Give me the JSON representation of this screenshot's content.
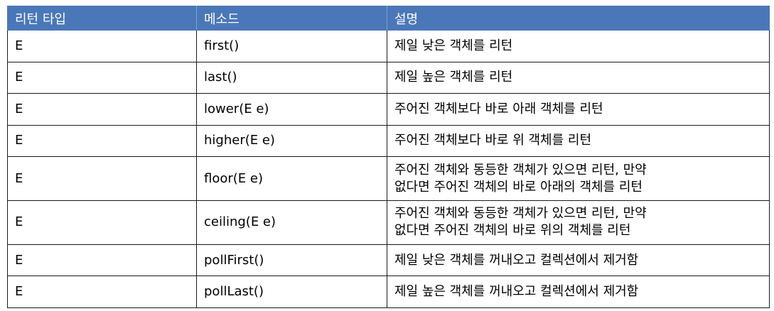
{
  "header": {
    "return_type": "리턴 타입",
    "method": "메소드",
    "description": "설명"
  },
  "rows": [
    {
      "return_type": "E",
      "method": "first()",
      "description": [
        "제일 낮은 객체를 리턴"
      ]
    },
    {
      "return_type": "E",
      "method": "last()",
      "description": [
        "제일 높은 객체를 리턴"
      ]
    },
    {
      "return_type": "E",
      "method": "lower(E e)",
      "description": [
        "주어진 객체보다 바로 아래 객체를 리턴"
      ]
    },
    {
      "return_type": "E",
      "method": "higher(E e)",
      "description": [
        "주어진 객체보다 바로 위 객체를 리턴"
      ]
    },
    {
      "return_type": "E",
      "method": "floor(E e)",
      "description": [
        "주어진 객체와 동등한 객체가 있으면 리턴, 만약",
        "없다면 주어진 객체의 바로 아래의 객체를 리턴"
      ]
    },
    {
      "return_type": "E",
      "method": "ceiling(E e)",
      "description": [
        "주어진 객체와 동등한 객체가 있으면 리턴, 만약",
        "없다면 주어진 객체의 바로 위의 객체를 리턴"
      ]
    },
    {
      "return_type": "E",
      "method": "pollFirst()",
      "description": [
        "제일 낮은 객체를 꺼내오고 컬렉션에서 제거함"
      ]
    },
    {
      "return_type": "E",
      "method": "pollLast()",
      "description": [
        "제일 높은 객체를 꺼내오고 컬렉션에서 제거함"
      ]
    }
  ],
  "colors": {
    "header_bg": "#4a77b8",
    "header_text": "#ffffff",
    "border": "#1a1a1a"
  }
}
